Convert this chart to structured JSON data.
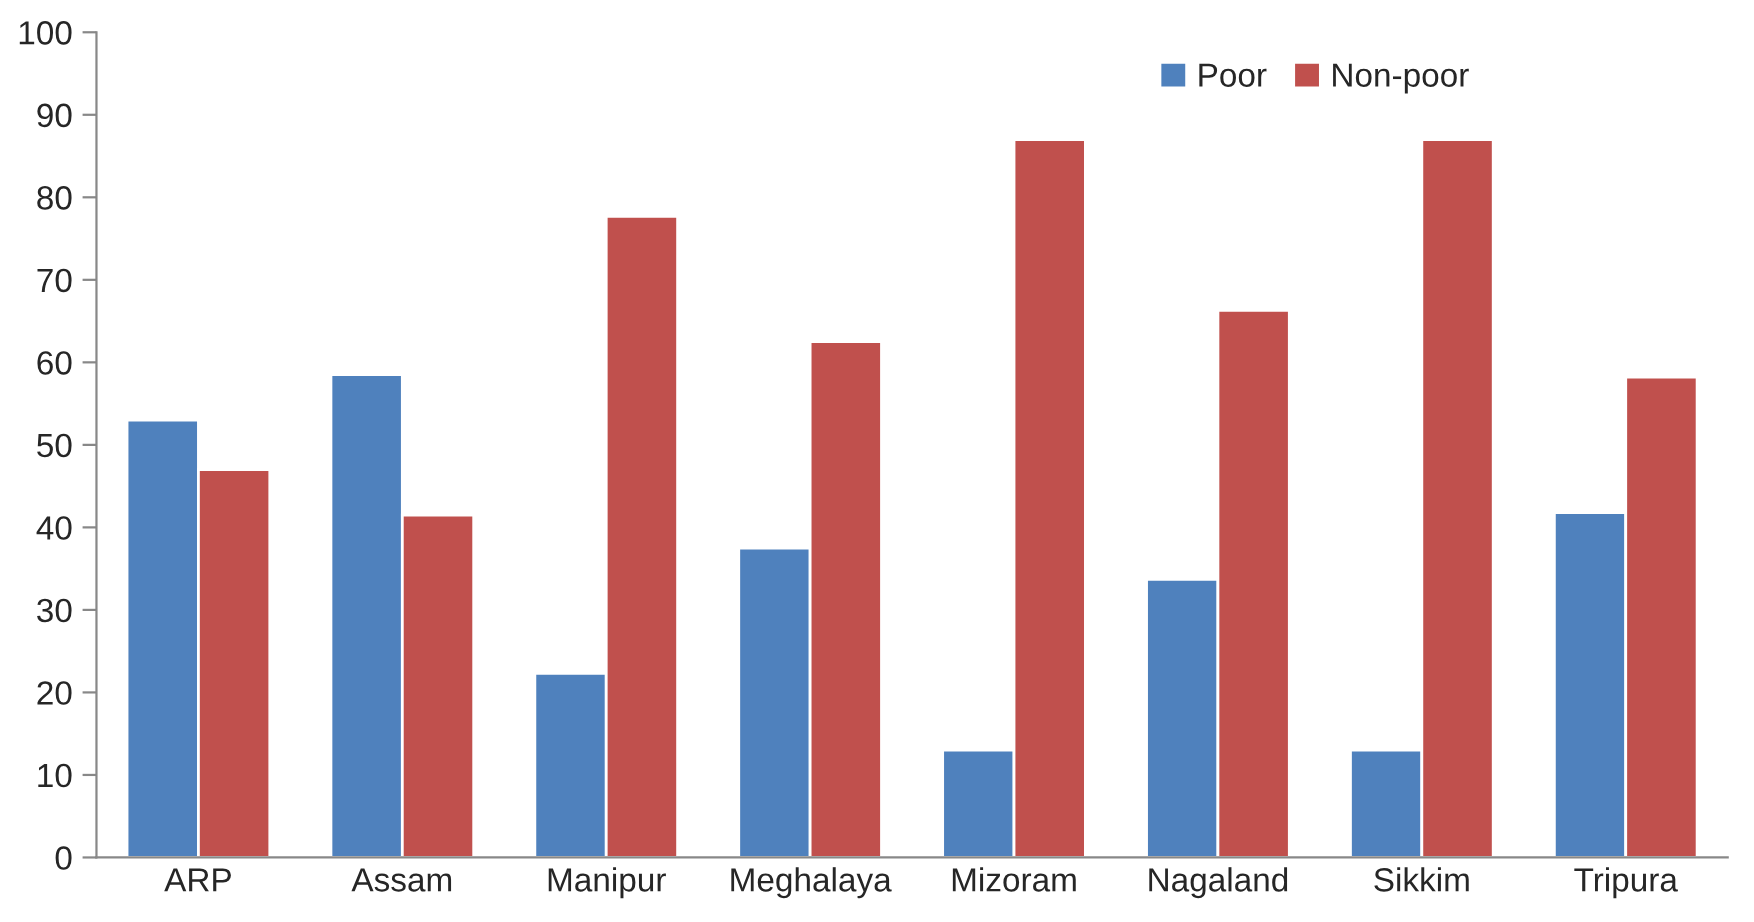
{
  "chart_data": {
    "type": "bar",
    "categories": [
      "ARP",
      "Assam",
      "Manipur",
      "Meghalaya",
      "Mizoram",
      "Nagaland",
      "Sikkim",
      "Tripura"
    ],
    "series": [
      {
        "name": "Poor",
        "color": "#4f81bd",
        "values": [
          53,
          58.5,
          22.3,
          37.5,
          13,
          33.7,
          13,
          41.8
        ]
      },
      {
        "name": "Non-poor",
        "color": "#c0504d",
        "values": [
          47,
          41.5,
          77.7,
          62.5,
          87,
          66.3,
          87,
          58.2
        ]
      }
    ],
    "ylim": [
      0,
      100
    ],
    "yticks": [
      0,
      10,
      20,
      30,
      40,
      50,
      60,
      70,
      80,
      90,
      100
    ],
    "grid": false,
    "legend": "top right"
  }
}
